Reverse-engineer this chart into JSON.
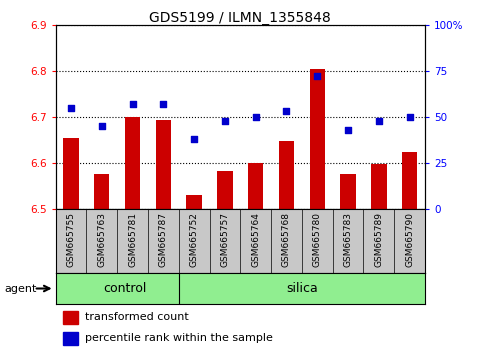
{
  "title": "GDS5199 / ILMN_1355848",
  "samples": [
    "GSM665755",
    "GSM665763",
    "GSM665781",
    "GSM665787",
    "GSM665752",
    "GSM665757",
    "GSM665764",
    "GSM665768",
    "GSM665780",
    "GSM665783",
    "GSM665789",
    "GSM665790"
  ],
  "transformed_count": [
    6.655,
    6.575,
    6.7,
    6.693,
    6.53,
    6.582,
    6.6,
    6.648,
    6.803,
    6.575,
    6.597,
    6.623
  ],
  "percentile_rank": [
    55,
    45,
    57,
    57,
    38,
    48,
    50,
    53,
    72,
    43,
    48,
    50
  ],
  "ylim_left": [
    6.5,
    6.9
  ],
  "ylim_right": [
    0,
    100
  ],
  "yticks_left": [
    6.5,
    6.6,
    6.7,
    6.8,
    6.9
  ],
  "yticks_right": [
    0,
    25,
    50,
    75,
    100
  ],
  "ytick_labels_right": [
    "0",
    "25",
    "50",
    "75",
    "100%"
  ],
  "bar_color": "#cc0000",
  "dot_color": "#0000cc",
  "bar_bottom": 6.5,
  "control_count": 4,
  "control_label": "control",
  "silica_label": "silica",
  "group_color": "#90ee90",
  "agent_label": "agent",
  "legend_bar_label": "transformed count",
  "legend_dot_label": "percentile rank within the sample",
  "tick_bg_color": "#c8c8c8",
  "plot_bg_color": "#ffffff",
  "fig_bg_color": "#ffffff",
  "bar_width": 0.5
}
